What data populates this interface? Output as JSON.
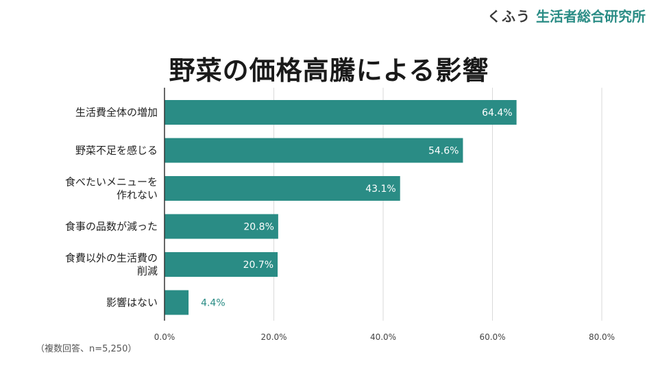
{
  "header": {
    "logo_kana": "くふう",
    "logo_org": "生活者総合研究所"
  },
  "footnote": "（複数回答、n=5,250）",
  "colors": {
    "bar": "#2a8c85",
    "grid": "#d9d9d9",
    "axis": "#333333"
  },
  "chart_data": {
    "type": "bar",
    "orientation": "horizontal",
    "title": "野菜の価格高騰による影響",
    "categories": [
      [
        "生活費全体の増加"
      ],
      [
        "野菜不足を感じる"
      ],
      [
        "食べたいメニューを",
        "作れない"
      ],
      [
        "食事の品数が減った"
      ],
      [
        "食費以外の生活費の",
        "削減"
      ],
      [
        "影響はない"
      ]
    ],
    "values": [
      64.4,
      54.6,
      43.1,
      20.8,
      20.7,
      4.4
    ],
    "value_labels": [
      "64.4%",
      "54.6%",
      "43.1%",
      "20.8%",
      "20.7%",
      "4.4%"
    ],
    "xlim": [
      0,
      80
    ],
    "xticks": [
      0,
      20,
      40,
      60,
      80
    ],
    "xtick_labels": [
      "0.0%",
      "20.0%",
      "40.0%",
      "60.0%",
      "80.0%"
    ],
    "xlabel": "",
    "ylabel": "",
    "grid": true
  }
}
